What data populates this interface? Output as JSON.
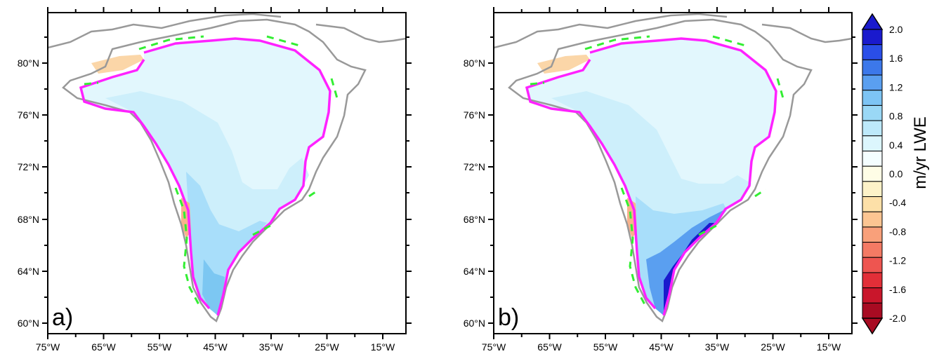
{
  "panels": [
    {
      "id": "a",
      "label": "a)"
    },
    {
      "id": "b",
      "label": "b)"
    }
  ],
  "lat_labels": [
    "80°N",
    "76°N",
    "72°N",
    "68°N",
    "64°N",
    "60°N"
  ],
  "lon_labels": [
    "75°W",
    "65°W",
    "55°W",
    "45°W",
    "35°W",
    "25°W",
    "15°W"
  ],
  "colorbar": {
    "title": "m/yr LWE",
    "tick_labels": [
      "2.0",
      "1.6",
      "1.2",
      "0.8",
      "0.4",
      "0.0",
      "-0.4",
      "-0.8",
      "-1.2",
      "-1.6",
      "-2.0"
    ],
    "colors": [
      "#1a1acd",
      "#2a4ee8",
      "#3c78ea",
      "#5a9ff0",
      "#7dc4f4",
      "#9ad8f6",
      "#bde9fa",
      "#dcf6fd",
      "#f4feff",
      "#fefde6",
      "#fdf2c8",
      "#fde0a8",
      "#fcc592",
      "#f9a07a",
      "#f47a64",
      "#ee5550",
      "#e22f38",
      "#c9162b",
      "#a80b22"
    ],
    "over_color": "#1a1acd",
    "under_color": "#a80b22"
  },
  "colors": {
    "coast": "#999999",
    "magenta_line": "#ff22ff",
    "green_line": "#33ee33",
    "interior": "#e2f7fd",
    "mid": "#bfe8f8",
    "margin": "#9dd8f4"
  }
}
